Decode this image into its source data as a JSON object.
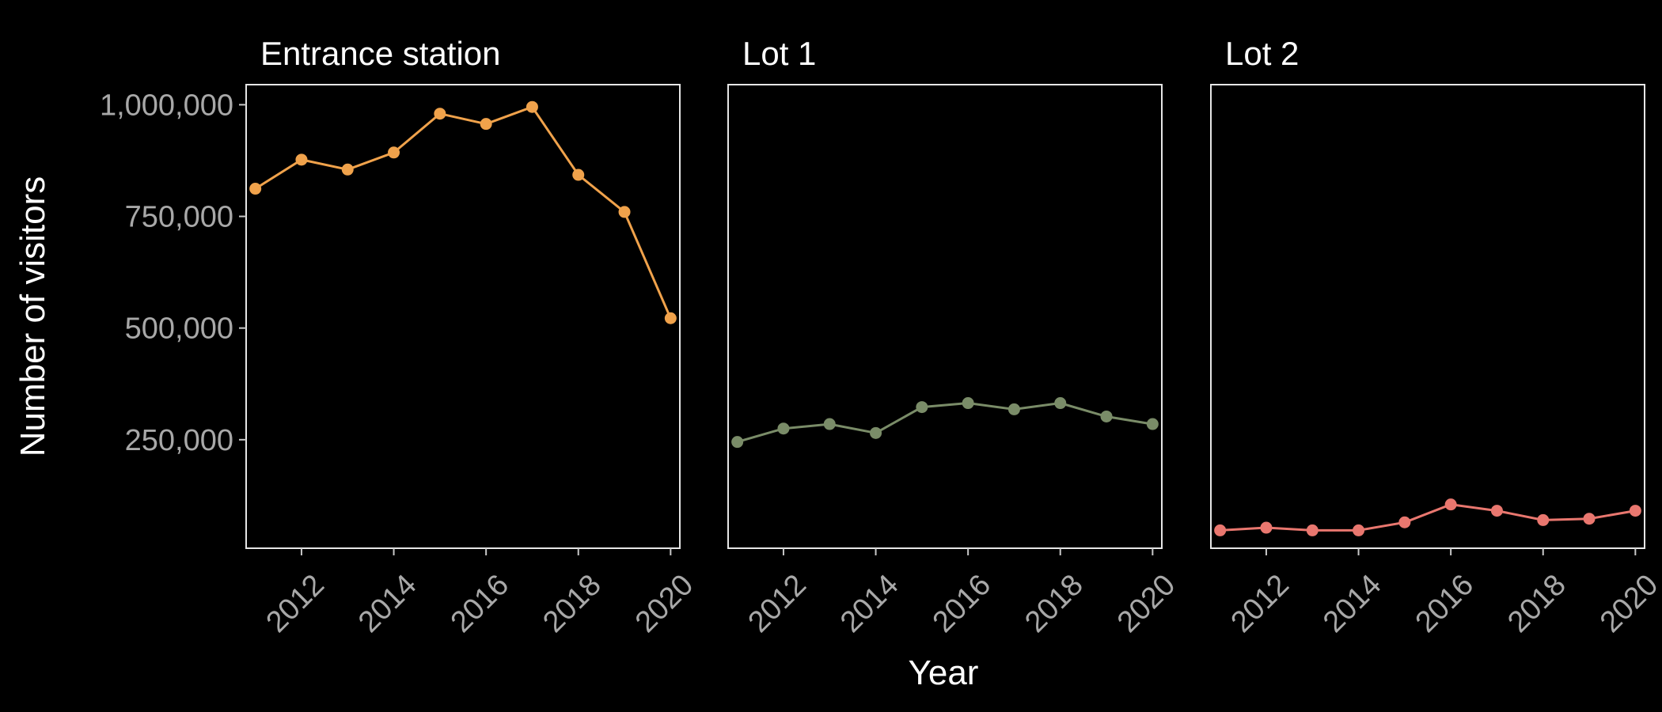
{
  "chart_data": {
    "type": "line",
    "xlabel": "Year",
    "ylabel": "Number of visitors",
    "x": [
      2011,
      2012,
      2013,
      2014,
      2015,
      2016,
      2017,
      2018,
      2019,
      2020
    ],
    "x_ticks": [
      2012,
      2014,
      2016,
      2018,
      2020
    ],
    "x_tick_labels": [
      "2012",
      "2014",
      "2016",
      "2018",
      "2020"
    ],
    "y_ticks": [
      250000,
      500000,
      750000,
      1000000
    ],
    "y_tick_labels": [
      "250,000",
      "500,000",
      "750,000",
      "1,000,000"
    ],
    "xlim": [
      2010.8,
      2020.2
    ],
    "ylim": [
      7000,
      1045000
    ],
    "grid": false,
    "legend": "none",
    "panels": [
      {
        "title": "Entrance station",
        "color": "#f0a24b",
        "values": [
          812000,
          877000,
          855000,
          893000,
          980000,
          957000,
          995000,
          843000,
          760000,
          522000
        ]
      },
      {
        "title": "Lot 1",
        "color": "#7a8c68",
        "values": [
          245000,
          275000,
          285000,
          265000,
          323000,
          332000,
          318000,
          332000,
          302000,
          285000
        ]
      },
      {
        "title": "Lot 2",
        "color": "#e9776f",
        "values": [
          47000,
          53000,
          47000,
          47000,
          65000,
          105000,
          91000,
          70000,
          73000,
          91000
        ]
      }
    ]
  }
}
